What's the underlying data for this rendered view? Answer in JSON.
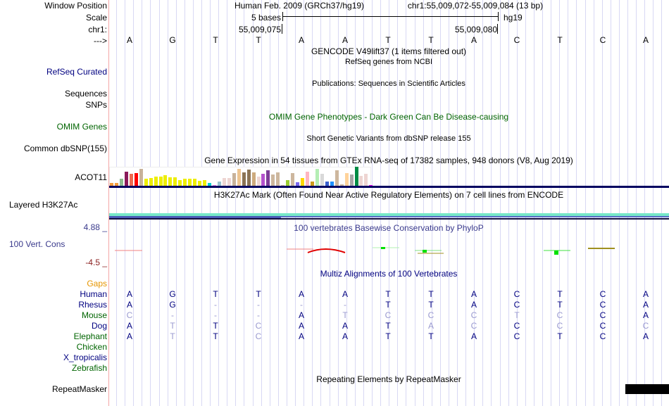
{
  "header": {
    "window_position_label": "Window Position",
    "scale_label": "Scale",
    "chrom_label": "chr1:",
    "strand_label": "--->",
    "assembly": "Human Feb. 2009 (GRCh37/hg19)",
    "position": "chr1:55,009,072-55,009,084 (13 bp)",
    "scale_text": "5 bases",
    "scale_db": "hg19",
    "tick_left": "55,009,075",
    "tick_right": "55,009,080"
  },
  "bases": [
    "A",
    "G",
    "T",
    "T",
    "A",
    "A",
    "T",
    "T",
    "A",
    "C",
    "T",
    "C",
    "A"
  ],
  "tracks": {
    "gencode_title": "GENCODE V49lift37 (1 items filtered out)",
    "refseq_title": "RefSeq genes from NCBI",
    "refseq_label": "RefSeq Curated",
    "pubs_title": "Publications: Sequences in Scientific Articles",
    "pubs_label1": "Sequences",
    "pubs_label2": "SNPs",
    "omim_title": "OMIM Gene Phenotypes - Dark Green Can Be Disease-causing",
    "omim_label": "OMIM Genes",
    "dbsnp_title": "Short Genetic Variants from dbSNP release 155",
    "dbsnp_label": "Common dbSNP(155)",
    "gtex_title": "Gene Expression in 54 tissues from GTEx RNA-seq of 17382 samples, 948 donors (V8, Aug 2019)",
    "gtex_label": "ACOT11",
    "h3k27_title": "H3K27Ac Mark (Often Found Near Active Regulatory Elements) on 7 cell lines from ENCODE",
    "h3k27_label": "Layered H3K27Ac",
    "phylop_title": "100 vertebrates Basewise Conservation by PhyloP",
    "phylop_label": "100 Vert. Cons",
    "phylop_max": "4.88 _",
    "phylop_min": "-4.5 _",
    "multiz_title": "Multiz Alignments of 100 Vertebrates",
    "gaps_label": "Gaps",
    "repeat_title": "Repeating Elements by RepeatMasker",
    "repeat_label": "RepeatMasker"
  },
  "gtex_bars": [
    {
      "c": "#f39c3c",
      "v": 0.15
    },
    {
      "c": "#f39c3c",
      "v": 0.15
    },
    {
      "c": "#8fbc8f",
      "v": 0.4
    },
    {
      "c": "#8b1a5a",
      "v": 0.85
    },
    {
      "c": "#ee6a50",
      "v": 0.7
    },
    {
      "c": "#ff0000",
      "v": 0.75
    },
    {
      "c": "#c8b29a",
      "v": 1.0
    },
    {
      "c": "#eeee00",
      "v": 0.4
    },
    {
      "c": "#eeee00",
      "v": 0.45
    },
    {
      "c": "#eeee00",
      "v": 0.55
    },
    {
      "c": "#eeee00",
      "v": 0.55
    },
    {
      "c": "#eeee00",
      "v": 0.62
    },
    {
      "c": "#eeee00",
      "v": 0.5
    },
    {
      "c": "#eeee00",
      "v": 0.48
    },
    {
      "c": "#eeee00",
      "v": 0.35
    },
    {
      "c": "#eeee00",
      "v": 0.43
    },
    {
      "c": "#eeee00",
      "v": 0.43
    },
    {
      "c": "#eeee00",
      "v": 0.43
    },
    {
      "c": "#eeee00",
      "v": 0.3
    },
    {
      "c": "#eeee00",
      "v": 0.33
    },
    {
      "c": "#00cdcd",
      "v": 0.18
    },
    {
      "c": "#ee82ee",
      "v": 0.05
    },
    {
      "c": "#9ac0cd",
      "v": 0.25
    },
    {
      "c": "#eed5d2",
      "v": 0.45
    },
    {
      "c": "#eed5d2",
      "v": 0.45
    },
    {
      "c": "#c8b29a",
      "v": 0.75
    },
    {
      "c": "#eec591",
      "v": 1.0
    },
    {
      "c": "#8b7355",
      "v": 0.8
    },
    {
      "c": "#8b7355",
      "v": 0.95
    },
    {
      "c": "#cdaa7d",
      "v": 0.8
    },
    {
      "c": "#eed5d2",
      "v": 0.55
    },
    {
      "c": "#b452cd",
      "v": 0.7
    },
    {
      "c": "#7d3c98",
      "v": 0.92
    },
    {
      "c": "#cdb79e",
      "v": 0.68
    },
    {
      "c": "#cdb79e",
      "v": 0.8
    },
    {
      "c": "#cdb79e",
      "v": 0.05
    },
    {
      "c": "#9acd32",
      "v": 0.35
    },
    {
      "c": "#cdb79e",
      "v": 0.75
    },
    {
      "c": "#7b68ee",
      "v": 0.2
    },
    {
      "c": "#ffd700",
      "v": 0.45
    },
    {
      "c": "#ffb6c1",
      "v": 0.82
    },
    {
      "c": "#cd9b1d",
      "v": 0.25
    },
    {
      "c": "#b4eeb4",
      "v": 1.0
    },
    {
      "c": "#d9d9d9",
      "v": 0.72
    },
    {
      "c": "#3a5fcd",
      "v": 0.25
    },
    {
      "c": "#1e90ff",
      "v": 0.25
    },
    {
      "c": "#cdb79e",
      "v": 0.9
    },
    {
      "c": "#cdb79e",
      "v": 0.07
    },
    {
      "c": "#ffd39b",
      "v": 0.75
    },
    {
      "c": "#a6a6a6",
      "v": 0.68
    },
    {
      "c": "#008b45",
      "v": 1.12
    },
    {
      "c": "#eed5d2",
      "v": 0.6
    },
    {
      "c": "#eed5d2",
      "v": 0.72
    },
    {
      "c": "#ee00ee",
      "v": 0.04
    }
  ],
  "alignment": {
    "species": [
      {
        "name": "Human",
        "cls": "navy",
        "seq": [
          "A",
          "G",
          "T",
          "T",
          "A",
          "A",
          "T",
          "T",
          "A",
          "C",
          "T",
          "C",
          "A"
        ],
        "dim": [
          0,
          0,
          0,
          0,
          0,
          0,
          0,
          0,
          0,
          0,
          0,
          0,
          0
        ]
      },
      {
        "name": "Rhesus",
        "cls": "navy",
        "seq": [
          "A",
          "G",
          "-",
          "-",
          "-",
          "-",
          "T",
          "T",
          "A",
          "C",
          "T",
          "C",
          "A"
        ],
        "dim": [
          0,
          0,
          1,
          1,
          1,
          1,
          0,
          0,
          0,
          0,
          0,
          0,
          0
        ]
      },
      {
        "name": "Mouse",
        "cls": "green",
        "seq": [
          "C",
          "-",
          "-",
          "-",
          "A",
          "T",
          "C",
          "C",
          "C",
          "T",
          "C",
          "C",
          "A"
        ],
        "dim": [
          1,
          1,
          1,
          1,
          0,
          1,
          1,
          1,
          1,
          1,
          1,
          0,
          0
        ]
      },
      {
        "name": "Dog",
        "cls": "navy",
        "seq": [
          "A",
          "T",
          "T",
          "C",
          "A",
          "A",
          "T",
          "A",
          "C",
          "C",
          "C",
          "C",
          "C"
        ],
        "dim": [
          0,
          1,
          0,
          1,
          0,
          0,
          0,
          1,
          1,
          0,
          1,
          0,
          1
        ]
      },
      {
        "name": "Elephant",
        "cls": "green",
        "seq": [
          "A",
          "T",
          "T",
          "C",
          "A",
          "A",
          "T",
          "T",
          "A",
          "C",
          "T",
          "C",
          "A"
        ],
        "dim": [
          0,
          1,
          0,
          1,
          0,
          0,
          0,
          0,
          0,
          0,
          0,
          0,
          0
        ]
      },
      {
        "name": "Chicken",
        "cls": "green",
        "seq": [],
        "dim": []
      },
      {
        "name": "X_tropicalis",
        "cls": "navy",
        "seq": [],
        "dim": []
      },
      {
        "name": "Zebrafish",
        "cls": "green",
        "seq": [],
        "dim": []
      }
    ]
  }
}
